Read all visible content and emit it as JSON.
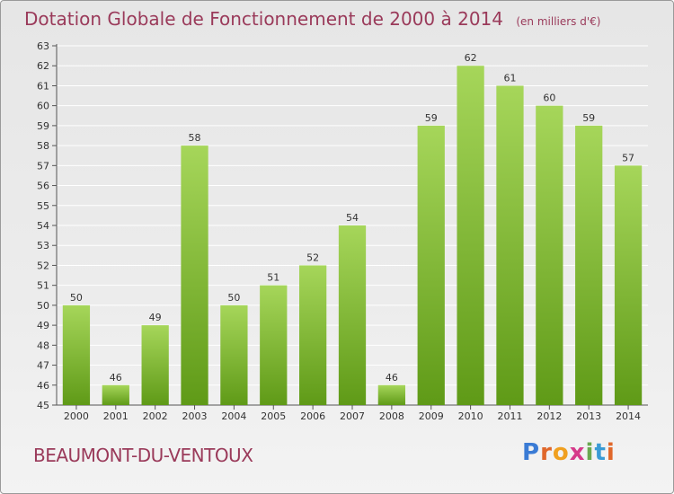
{
  "header": {
    "title": "Dotation Globale de Fonctionnement de 2000 à 2014",
    "subtitle": "(en milliers d'€)"
  },
  "footer": {
    "commune": "BEAUMONT-DU-VENTOUX",
    "logo": [
      "P",
      "r",
      "o",
      "x",
      "i",
      "t",
      "i"
    ],
    "logo_colors": [
      "#3a7bd5",
      "#e0672a",
      "#f0a020",
      "#d63a8a",
      "#6aa84f",
      "#3a9bd5",
      "#e0672a"
    ]
  },
  "colors": {
    "bar_top": "#a6d65a",
    "bar_bottom": "#5f9a17",
    "axis": "#555555",
    "grid": "#ffffff",
    "text": "#333333",
    "accent": "#9a3a5a"
  },
  "chart_data": {
    "type": "bar",
    "title": "Dotation Globale de Fonctionnement de 2000 à 2014",
    "subtitle": "(en milliers d'€)",
    "categories": [
      "2000",
      "2001",
      "2002",
      "2003",
      "2004",
      "2005",
      "2006",
      "2007",
      "2008",
      "2009",
      "2010",
      "2011",
      "2012",
      "2013",
      "2014"
    ],
    "values": [
      50,
      46,
      49,
      58,
      50,
      51,
      52,
      54,
      46,
      59,
      62,
      61,
      60,
      59,
      57
    ],
    "ylim": [
      45,
      63
    ],
    "yticks": [
      45,
      46,
      47,
      48,
      49,
      50,
      51,
      52,
      53,
      54,
      55,
      56,
      57,
      58,
      59,
      60,
      61,
      62,
      63
    ],
    "grid": true
  }
}
